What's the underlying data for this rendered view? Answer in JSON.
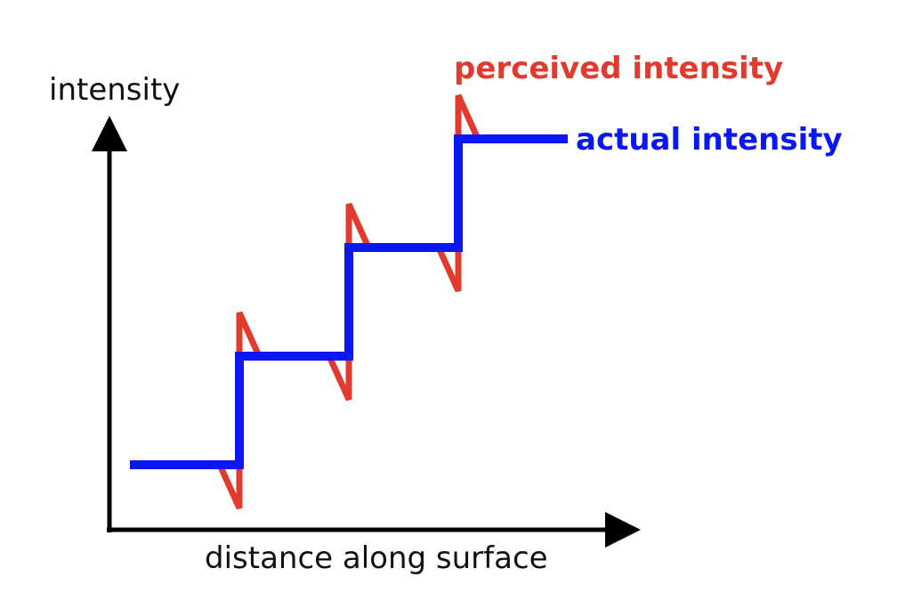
{
  "chart_data": {
    "type": "line",
    "ylabel": "intensity",
    "xlabel": "distance along surface",
    "series": [
      {
        "name": "actual intensity",
        "color": "#0a17f0",
        "points": [
          [
            0,
            0
          ],
          [
            1,
            0
          ],
          [
            1,
            1
          ],
          [
            2,
            1
          ],
          [
            2,
            2
          ],
          [
            3,
            2
          ],
          [
            3,
            3
          ],
          [
            4,
            3
          ]
        ]
      },
      {
        "name": "perceived intensity",
        "color": "#e23a2c",
        "points": [
          [
            0.82,
            0
          ],
          [
            1,
            -0.4
          ],
          [
            1,
            1.4
          ],
          [
            1.18,
            1
          ],
          [
            1.82,
            1
          ],
          [
            2,
            0.6
          ],
          [
            2,
            2.4
          ],
          [
            2.18,
            2
          ],
          [
            2.82,
            2
          ],
          [
            3,
            1.6
          ],
          [
            3,
            3.4
          ],
          [
            3.18,
            3
          ]
        ]
      }
    ]
  }
}
